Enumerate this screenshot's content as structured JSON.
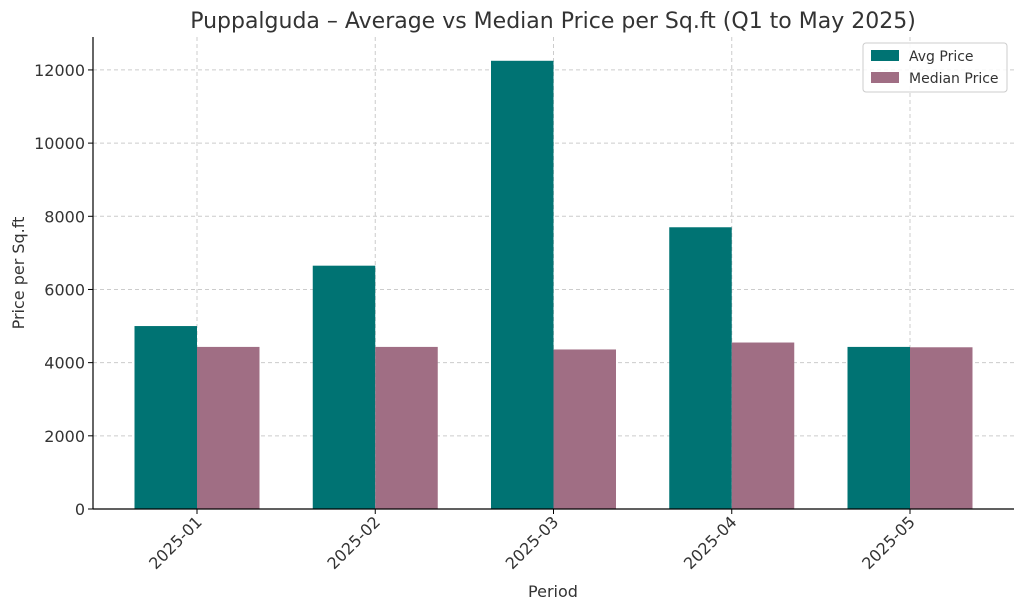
{
  "chart_data": {
    "type": "bar",
    "title": "Puppalguda – Average vs Median Price per Sq.ft (Q1 to May 2025)",
    "xlabel": "Period",
    "ylabel": "Price per Sq.ft",
    "categories": [
      "2025-01",
      "2025-02",
      "2025-03",
      "2025-04",
      "2025-05"
    ],
    "series": [
      {
        "name": "Avg Price",
        "color": "#007373",
        "values": [
          5000,
          6650,
          12250,
          7700,
          4430
        ]
      },
      {
        "name": "Median Price",
        "color": "#A06E84",
        "values": [
          4430,
          4430,
          4360,
          4550,
          4420
        ]
      }
    ],
    "ylim": [
      0,
      12900
    ],
    "yticks": [
      0,
      2000,
      4000,
      6000,
      8000,
      10000,
      12000
    ],
    "grid": true,
    "legend_position": "top-right"
  }
}
